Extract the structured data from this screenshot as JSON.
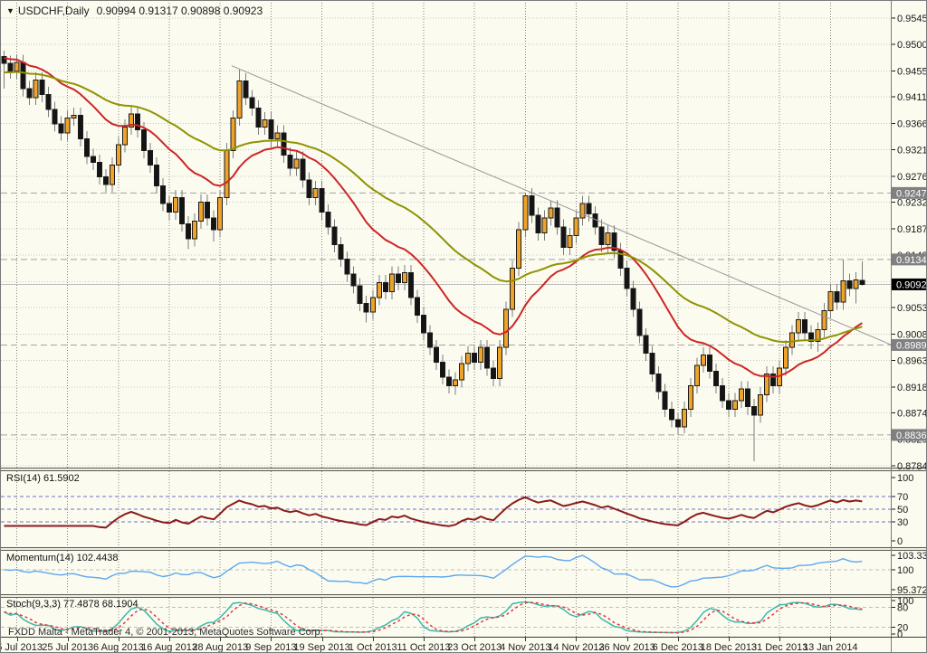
{
  "window": {
    "dropdown_icon": "▼",
    "symbol_label": "USDCHF,Daily",
    "ohlc_text": "0.90994 0.91317 0.90898 0.90923",
    "copyright": "FXDD Malta - MetaTrader 4, © 2001-2013, MetaQuotes Software Corp."
  },
  "colors": {
    "background": "#FBFBF0",
    "grid_h": "#C9C9C0",
    "grid_v": "#85857C",
    "bull": "#EFA32A",
    "bear": "#141414",
    "wick": "#7D7D7D",
    "candle_border": "#1A1A1A",
    "ma_fast": "#CD2626",
    "ma_slow": "#8F9300",
    "trendline": "#979797",
    "sr_line": "#A3A3A3",
    "price_line": "#BDBDBD",
    "price_box_bg": "#000000",
    "sr_box_bg": "#808080",
    "box_text": "#FFFFFF",
    "rsi_line": "#8B1A1A",
    "rsi_level": "#7171C6",
    "momentum_line": "#5CA8F0",
    "level_gray": "#BFBFB5",
    "stoch_k": "#3CB8AC",
    "stoch_d": "#E23A3A",
    "axis_text": "#1A1A1A",
    "frame": "#7A7A7A"
  },
  "chart_data": {
    "type": "candlestick",
    "symbol": "USDCHF",
    "timeframe": "Daily",
    "current_bar": {
      "open": "0.90994",
      "high": "0.91317",
      "low": "0.90898",
      "close": "0.90923"
    },
    "current_price": "0.90923",
    "price_levels": [
      "0.92477",
      "0.91347",
      "0.89893",
      "0.88364"
    ],
    "trendline": {
      "bar1": 35.8,
      "price1": 0.9464,
      "bar2": 139.5,
      "price2": 0.899
    },
    "y_axis": {
      "min": 0.87809,
      "max": 0.95711,
      "tick_labels": [
        "0.95450",
        "0.95000",
        "0.94550",
        "0.94110",
        "0.93660",
        "0.93210",
        "0.92760",
        "0.92320",
        "0.91870",
        "0.91420",
        "0.90970",
        "0.90530",
        "0.90080",
        "0.89630",
        "0.89180",
        "0.88740",
        "0.88290",
        "0.87840"
      ]
    },
    "x_axis": {
      "ticks": [
        {
          "label": "15 Jul 2013",
          "bar": 2
        },
        {
          "label": "25 Jul 2013",
          "bar": 10
        },
        {
          "label": "6 Aug 2013",
          "bar": 18
        },
        {
          "label": "16 Aug 2013",
          "bar": 26
        },
        {
          "label": "28 Aug 2013",
          "bar": 34
        },
        {
          "label": "9 Sep 2013",
          "bar": 42
        },
        {
          "label": "19 Sep 2013",
          "bar": 50
        },
        {
          "label": "1 Oct 2013",
          "bar": 58
        },
        {
          "label": "11 Oct 2013",
          "bar": 66
        },
        {
          "label": "23 Oct 2013",
          "bar": 74
        },
        {
          "label": "4 Nov 2013",
          "bar": 82
        },
        {
          "label": "14 Nov 2013",
          "bar": 90
        },
        {
          "label": "26 Nov 2013",
          "bar": 98
        },
        {
          "label": "6 Dec 2013",
          "bar": 106
        },
        {
          "label": "18 Dec 2013",
          "bar": 114
        },
        {
          "label": "31 Dec 2013",
          "bar": 122
        },
        {
          "label": "13 Jan 2014",
          "bar": 130
        }
      ]
    },
    "moving_averages": [
      {
        "type": "ema",
        "period": 20,
        "seed": 0.9478,
        "color_key": "ma_fast"
      },
      {
        "type": "ema",
        "period": 45,
        "seed": 0.9452,
        "color_key": "ma_slow"
      }
    ],
    "indicators": {
      "rsi": {
        "label": "RSI(14) 61.5902",
        "period": 14,
        "levels": [
          70,
          50,
          30
        ],
        "axis_labels": [
          "100",
          "70",
          "50",
          "30",
          "0"
        ],
        "range": [
          -10,
          110
        ]
      },
      "momentum": {
        "label": "Momentum(14) 102.4438",
        "period": 14,
        "levels": [
          100
        ],
        "axis_labels": [
          "103.3367",
          "100",
          "95.3722"
        ],
        "range": [
          94.3,
          104.4
        ]
      },
      "stochastic": {
        "label": "Stoch(9,3,3) 77.4878 68.1904",
        "k_period": 9,
        "slowing": 3,
        "d_period": 3,
        "levels": [
          80,
          20
        ],
        "axis_labels": [
          "100",
          "80",
          "20",
          "0"
        ],
        "range": [
          -8,
          108
        ]
      }
    },
    "ohlc": [
      [
        0.948,
        0.949,
        0.9425,
        0.9468
      ],
      [
        0.9468,
        0.9481,
        0.9442,
        0.9455
      ],
      [
        0.9455,
        0.9483,
        0.9442,
        0.947
      ],
      [
        0.947,
        0.9483,
        0.9412,
        0.9425
      ],
      [
        0.9425,
        0.9438,
        0.9397,
        0.941
      ],
      [
        0.941,
        0.9453,
        0.9397,
        0.944
      ],
      [
        0.944,
        0.9453,
        0.9402,
        0.9415
      ],
      [
        0.9415,
        0.9428,
        0.9377,
        0.939
      ],
      [
        0.939,
        0.9403,
        0.9352,
        0.9365
      ],
      [
        0.9365,
        0.9378,
        0.9337,
        0.935
      ],
      [
        0.935,
        0.9388,
        0.9337,
        0.9375
      ],
      [
        0.9375,
        0.9393,
        0.9362,
        0.938
      ],
      [
        0.938,
        0.9393,
        0.9327,
        0.934
      ],
      [
        0.934,
        0.9353,
        0.9297,
        0.931
      ],
      [
        0.931,
        0.9323,
        0.9287,
        0.93
      ],
      [
        0.93,
        0.9313,
        0.9262,
        0.9275
      ],
      [
        0.9275,
        0.9288,
        0.9249,
        0.9262
      ],
      [
        0.9262,
        0.9308,
        0.9249,
        0.9295
      ],
      [
        0.9295,
        0.9343,
        0.9282,
        0.933
      ],
      [
        0.933,
        0.9373,
        0.9317,
        0.936
      ],
      [
        0.936,
        0.9395,
        0.9347,
        0.9382
      ],
      [
        0.9382,
        0.9395,
        0.9342,
        0.9355
      ],
      [
        0.9355,
        0.9368,
        0.9307,
        0.932
      ],
      [
        0.932,
        0.9333,
        0.9282,
        0.9295
      ],
      [
        0.9295,
        0.9308,
        0.9247,
        0.926
      ],
      [
        0.926,
        0.9273,
        0.9217,
        0.923
      ],
      [
        0.923,
        0.9243,
        0.9202,
        0.9215
      ],
      [
        0.9215,
        0.9253,
        0.9202,
        0.924
      ],
      [
        0.924,
        0.9253,
        0.9182,
        0.9195
      ],
      [
        0.9195,
        0.9208,
        0.9152,
        0.917
      ],
      [
        0.917,
        0.9213,
        0.9157,
        0.92
      ],
      [
        0.92,
        0.9245,
        0.9187,
        0.9232
      ],
      [
        0.9232,
        0.9245,
        0.9192,
        0.9205
      ],
      [
        0.9205,
        0.9218,
        0.9165,
        0.9185
      ],
      [
        0.9185,
        0.9253,
        0.9172,
        0.924
      ],
      [
        0.924,
        0.9333,
        0.9227,
        0.932
      ],
      [
        0.932,
        0.9388,
        0.9307,
        0.9375
      ],
      [
        0.9375,
        0.9457,
        0.9362,
        0.9438
      ],
      [
        0.9438,
        0.9451,
        0.9397,
        0.941
      ],
      [
        0.941,
        0.9423,
        0.9379,
        0.9392
      ],
      [
        0.9392,
        0.9405,
        0.9347,
        0.936
      ],
      [
        0.936,
        0.9385,
        0.9347,
        0.9372
      ],
      [
        0.9372,
        0.9385,
        0.9327,
        0.934
      ],
      [
        0.934,
        0.9363,
        0.9327,
        0.935
      ],
      [
        0.935,
        0.9363,
        0.9299,
        0.9312
      ],
      [
        0.9312,
        0.9325,
        0.9277,
        0.929
      ],
      [
        0.929,
        0.9318,
        0.9277,
        0.9305
      ],
      [
        0.9305,
        0.9318,
        0.9257,
        0.927
      ],
      [
        0.927,
        0.9283,
        0.9227,
        0.924
      ],
      [
        0.924,
        0.9268,
        0.9227,
        0.9255
      ],
      [
        0.9255,
        0.9268,
        0.9202,
        0.9215
      ],
      [
        0.9215,
        0.9228,
        0.9177,
        0.919
      ],
      [
        0.919,
        0.9203,
        0.9147,
        0.916
      ],
      [
        0.916,
        0.9173,
        0.9122,
        0.9135
      ],
      [
        0.9135,
        0.9148,
        0.9097,
        0.911
      ],
      [
        0.911,
        0.9123,
        0.9077,
        0.909
      ],
      [
        0.909,
        0.9103,
        0.9047,
        0.906
      ],
      [
        0.906,
        0.9073,
        0.9028,
        0.9045
      ],
      [
        0.9045,
        0.9083,
        0.9032,
        0.907
      ],
      [
        0.907,
        0.9108,
        0.9057,
        0.9095
      ],
      [
        0.9095,
        0.9108,
        0.9067,
        0.908
      ],
      [
        0.908,
        0.9123,
        0.9067,
        0.911
      ],
      [
        0.911,
        0.9123,
        0.9082,
        0.9095
      ],
      [
        0.9095,
        0.9125,
        0.9082,
        0.9112
      ],
      [
        0.9112,
        0.9125,
        0.9057,
        0.907
      ],
      [
        0.907,
        0.9083,
        0.9027,
        0.904
      ],
      [
        0.904,
        0.9053,
        0.8997,
        0.901
      ],
      [
        0.901,
        0.9023,
        0.8972,
        0.8985
      ],
      [
        0.8985,
        0.8998,
        0.8947,
        0.896
      ],
      [
        0.896,
        0.8973,
        0.8922,
        0.8935
      ],
      [
        0.8935,
        0.8948,
        0.8907,
        0.892
      ],
      [
        0.892,
        0.8943,
        0.8905,
        0.893
      ],
      [
        0.893,
        0.8971,
        0.8917,
        0.8958
      ],
      [
        0.8958,
        0.8988,
        0.8945,
        0.8975
      ],
      [
        0.8975,
        0.8988,
        0.8947,
        0.896
      ],
      [
        0.896,
        0.8998,
        0.8947,
        0.8985
      ],
      [
        0.8985,
        0.8998,
        0.8937,
        0.895
      ],
      [
        0.895,
        0.8963,
        0.8919,
        0.8932
      ],
      [
        0.8932,
        0.8998,
        0.8919,
        0.8985
      ],
      [
        0.8985,
        0.9063,
        0.8972,
        0.905
      ],
      [
        0.905,
        0.9133,
        0.9037,
        0.912
      ],
      [
        0.912,
        0.9198,
        0.9107,
        0.9185
      ],
      [
        0.9185,
        0.9248,
        0.9172,
        0.9243
      ],
      [
        0.9243,
        0.9256,
        0.9197,
        0.921
      ],
      [
        0.921,
        0.9223,
        0.9167,
        0.918
      ],
      [
        0.918,
        0.9218,
        0.9167,
        0.9205
      ],
      [
        0.9205,
        0.9235,
        0.9192,
        0.9222
      ],
      [
        0.9222,
        0.9235,
        0.9177,
        0.919
      ],
      [
        0.919,
        0.9203,
        0.9142,
        0.9155
      ],
      [
        0.9155,
        0.9188,
        0.9142,
        0.9175
      ],
      [
        0.9175,
        0.9218,
        0.9162,
        0.9205
      ],
      [
        0.9205,
        0.9243,
        0.9192,
        0.923
      ],
      [
        0.923,
        0.9243,
        0.9199,
        0.9212
      ],
      [
        0.9212,
        0.9225,
        0.9177,
        0.919
      ],
      [
        0.919,
        0.9203,
        0.9147,
        0.916
      ],
      [
        0.916,
        0.9193,
        0.9147,
        0.918
      ],
      [
        0.918,
        0.9193,
        0.9137,
        0.915
      ],
      [
        0.915,
        0.9163,
        0.9107,
        0.912
      ],
      [
        0.912,
        0.9133,
        0.9072,
        0.9085
      ],
      [
        0.9085,
        0.9098,
        0.9037,
        0.905
      ],
      [
        0.905,
        0.9063,
        0.8992,
        0.9005
      ],
      [
        0.9005,
        0.9018,
        0.8962,
        0.8975
      ],
      [
        0.8975,
        0.8988,
        0.8927,
        0.894
      ],
      [
        0.894,
        0.8953,
        0.8897,
        0.891
      ],
      [
        0.891,
        0.8923,
        0.8867,
        0.888
      ],
      [
        0.888,
        0.8893,
        0.8849,
        0.8862
      ],
      [
        0.8862,
        0.8875,
        0.8836,
        0.885
      ],
      [
        0.885,
        0.8893,
        0.8839,
        0.888
      ],
      [
        0.888,
        0.8933,
        0.8867,
        0.892
      ],
      [
        0.892,
        0.8968,
        0.8907,
        0.8955
      ],
      [
        0.8955,
        0.8985,
        0.8942,
        0.8972
      ],
      [
        0.8972,
        0.8985,
        0.8932,
        0.8945
      ],
      [
        0.8945,
        0.8958,
        0.8907,
        0.892
      ],
      [
        0.892,
        0.8933,
        0.8882,
        0.8895
      ],
      [
        0.8895,
        0.8908,
        0.8867,
        0.888
      ],
      [
        0.888,
        0.8908,
        0.8867,
        0.8895
      ],
      [
        0.8895,
        0.8928,
        0.8882,
        0.8915
      ],
      [
        0.8915,
        0.8928,
        0.887,
        0.8885
      ],
      [
        0.8885,
        0.8898,
        0.8792,
        0.887
      ],
      [
        0.887,
        0.8918,
        0.8857,
        0.8905
      ],
      [
        0.8905,
        0.8953,
        0.8892,
        0.894
      ],
      [
        0.894,
        0.8953,
        0.8907,
        0.892
      ],
      [
        0.892,
        0.8963,
        0.8907,
        0.895
      ],
      [
        0.895,
        0.8998,
        0.8937,
        0.8985
      ],
      [
        0.8985,
        0.9023,
        0.8972,
        0.901
      ],
      [
        0.901,
        0.9045,
        0.8997,
        0.9032
      ],
      [
        0.9032,
        0.9045,
        0.8997,
        0.901
      ],
      [
        0.901,
        0.9023,
        0.8982,
        0.8995
      ],
      [
        0.8995,
        0.9028,
        0.8978,
        0.9015
      ],
      [
        0.9015,
        0.9061,
        0.9002,
        0.9048
      ],
      [
        0.9048,
        0.9093,
        0.9035,
        0.908
      ],
      [
        0.908,
        0.9093,
        0.9049,
        0.9062
      ],
      [
        0.9062,
        0.91347,
        0.9049,
        0.9098
      ],
      [
        0.9098,
        0.9111,
        0.9072,
        0.9085
      ],
      [
        0.9085,
        0.9113,
        0.906,
        0.91
      ],
      [
        0.90994,
        0.91317,
        0.90898,
        0.90923
      ]
    ]
  }
}
